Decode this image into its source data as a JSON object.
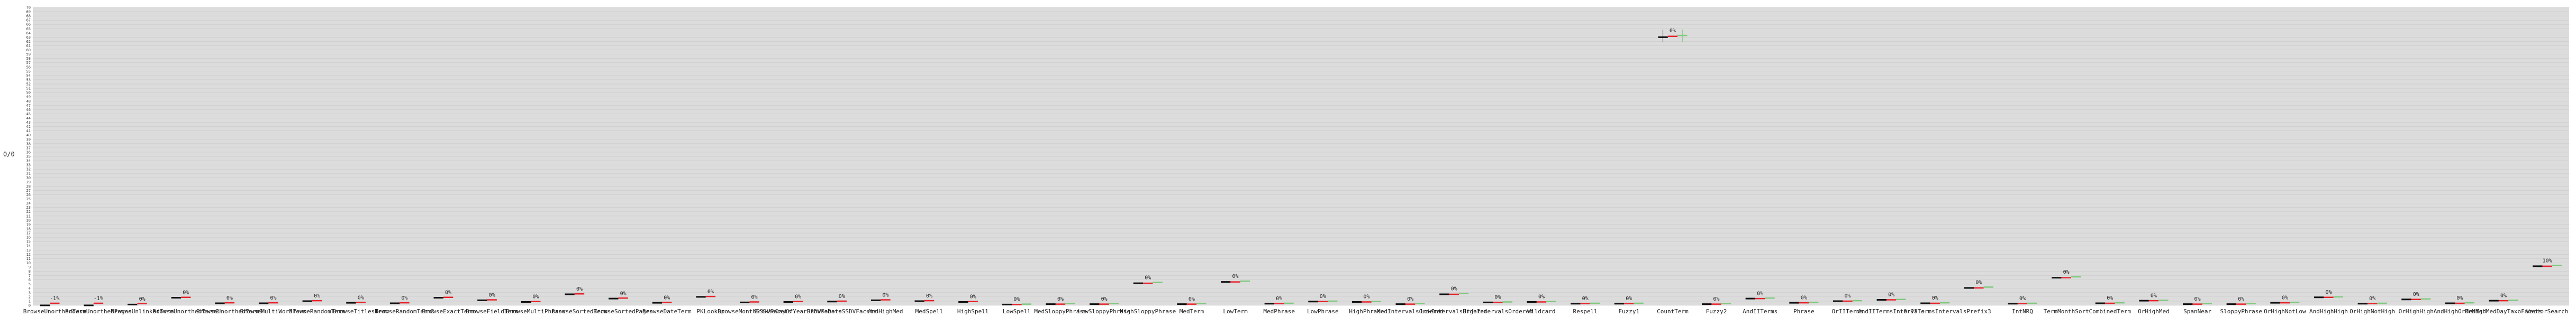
{
  "chart_data": {
    "type": "bar",
    "title": "",
    "xlabel": "",
    "ylabel": "0/0",
    "grid": true,
    "ylim": [
      0,
      70
    ],
    "colors": {
      "plot_bg": "#dcdcdc",
      "grid": "#c8c8c8",
      "baseline_bar": "#111111",
      "red_bar": "#e8222a",
      "green_bar": "#7ec97e"
    },
    "marker_series": [
      {
        "name": "",
        "color": "#111111"
      },
      {
        "name": "",
        "color": "#e8222a"
      },
      {
        "name": "",
        "color": "#7ec97e"
      }
    ],
    "categories": [
      {
        "label": "BrowseUnorthedTerm",
        "pct_label": "-1%",
        "values": [
          0.0,
          0.5,
          0.0
        ]
      },
      {
        "label": "BrowseUnorthedPages",
        "pct_label": "-1%",
        "values": [
          0.0,
          0.5,
          0.0
        ]
      },
      {
        "label": "BrowseUnlinkedTerm",
        "pct_label": "0%",
        "values": [
          0.2,
          0.4,
          0.0
        ]
      },
      {
        "label": "BrowseUnorthedTerm2",
        "pct_label": "0%",
        "values": [
          1.8,
          1.9,
          0.0
        ]
      },
      {
        "label": "BrowseUnorthedTerm3",
        "pct_label": "0%",
        "values": [
          0.5,
          0.6,
          0.0
        ]
      },
      {
        "label": "BrowseMultiWordTerm",
        "pct_label": "0%",
        "values": [
          0.5,
          0.6,
          0.0
        ]
      },
      {
        "label": "BrowseRandomTerm",
        "pct_label": "0%",
        "values": [
          1.0,
          1.1,
          0.0
        ]
      },
      {
        "label": "BrowseTitlesTerm",
        "pct_label": "0%",
        "values": [
          0.6,
          0.7,
          0.0
        ]
      },
      {
        "label": "BrowseRandomTerm2",
        "pct_label": "0%",
        "values": [
          0.5,
          0.6,
          0.0
        ]
      },
      {
        "label": "BrowseExactTerm",
        "pct_label": "0%",
        "values": [
          1.8,
          1.9,
          0.0
        ]
      },
      {
        "label": "BrowseFieldTerm",
        "pct_label": "0%",
        "values": [
          1.2,
          1.3,
          0.0
        ]
      },
      {
        "label": "BrowseMultiPhrase",
        "pct_label": "0%",
        "values": [
          0.8,
          0.9,
          0.0
        ]
      },
      {
        "label": "BrowseSortedTerm",
        "pct_label": "0%",
        "values": [
          2.6,
          2.7,
          0.0
        ]
      },
      {
        "label": "BrowseSortedPages",
        "pct_label": "0%",
        "values": [
          1.6,
          1.7,
          0.0
        ]
      },
      {
        "label": "BrowseDateTerm",
        "pct_label": "0%",
        "values": [
          0.6,
          0.7,
          0.0
        ]
      },
      {
        "label": "PKLookup",
        "pct_label": "0%",
        "values": [
          2.0,
          2.1,
          0.0
        ]
      },
      {
        "label": "BrowseMonthSSDVFacets",
        "pct_label": "0%",
        "values": [
          0.7,
          0.8,
          0.0
        ]
      },
      {
        "label": "BrowseDayOfYearSSDVFacets",
        "pct_label": "0%",
        "values": [
          0.8,
          0.9,
          0.0
        ]
      },
      {
        "label": "BrowseDateSSDVFacets",
        "pct_label": "0%",
        "values": [
          0.9,
          1.0,
          0.0
        ]
      },
      {
        "label": "AndHighMed",
        "pct_label": "0%",
        "values": [
          1.2,
          1.3,
          0.0
        ]
      },
      {
        "label": "MedSpell",
        "pct_label": "0%",
        "values": [
          1.0,
          1.1,
          0.0
        ]
      },
      {
        "label": "HighSpell",
        "pct_label": "0%",
        "values": [
          0.8,
          0.9,
          0.0
        ]
      },
      {
        "label": "LowSpell",
        "pct_label": "0%",
        "values": [
          0.2,
          0.2,
          0.3
        ]
      },
      {
        "label": "MedSloppyPhrase",
        "pct_label": "0%",
        "values": [
          0.3,
          0.3,
          0.4
        ]
      },
      {
        "label": "LowSloppyPhrase",
        "pct_label": "0%",
        "values": [
          0.3,
          0.3,
          0.4
        ]
      },
      {
        "label": "HighSloppyPhrase",
        "pct_label": "0%",
        "values": [
          5.2,
          5.2,
          5.4
        ]
      },
      {
        "label": "MedTerm",
        "pct_label": "0%",
        "values": [
          0.3,
          0.3,
          0.4
        ]
      },
      {
        "label": "LowTerm",
        "pct_label": "0%",
        "values": [
          5.5,
          5.5,
          5.7
        ]
      },
      {
        "label": "MedPhrase",
        "pct_label": "0%",
        "values": [
          0.4,
          0.4,
          0.5
        ]
      },
      {
        "label": "LowPhrase",
        "pct_label": "0%",
        "values": [
          0.9,
          0.9,
          1.0
        ]
      },
      {
        "label": "HighPhrase",
        "pct_label": "0%",
        "values": [
          0.8,
          0.8,
          0.9
        ]
      },
      {
        "label": "MedIntervalsOrdered",
        "pct_label": "0%",
        "values": [
          0.3,
          0.3,
          0.4
        ]
      },
      {
        "label": "LowIntervalsOrdered",
        "pct_label": "0%",
        "values": [
          2.6,
          2.6,
          2.8
        ]
      },
      {
        "label": "HighIntervalsOrdered",
        "pct_label": "0%",
        "values": [
          0.7,
          0.7,
          0.8
        ]
      },
      {
        "label": "Wildcard",
        "pct_label": "0%",
        "values": [
          0.8,
          0.8,
          0.9
        ]
      },
      {
        "label": "Respell",
        "pct_label": "0%",
        "values": [
          0.4,
          0.4,
          0.5
        ]
      },
      {
        "label": "Fuzzy1",
        "pct_label": "0%",
        "values": [
          0.4,
          0.4,
          0.5
        ]
      },
      {
        "label": "CountTerm",
        "pct_label": "0%",
        "values": [
          63.0,
          63.2,
          63.4
        ]
      },
      {
        "label": "Fuzzy2",
        "pct_label": "0%",
        "values": [
          0.3,
          0.3,
          0.4
        ]
      },
      {
        "label": "AndIITerms",
        "pct_label": "0%",
        "values": [
          1.6,
          1.6,
          1.7
        ]
      },
      {
        "label": "Phrase",
        "pct_label": "0%",
        "values": [
          0.6,
          0.6,
          0.7
        ]
      },
      {
        "label": "OrIITerms",
        "pct_label": "0%",
        "values": [
          1.0,
          1.0,
          1.1
        ]
      },
      {
        "label": "AndIITermsIntervals",
        "pct_label": "0%",
        "values": [
          1.3,
          1.3,
          1.4
        ]
      },
      {
        "label": "OrIITermsIntervals",
        "pct_label": "0%",
        "values": [
          0.5,
          0.5,
          0.6
        ]
      },
      {
        "label": "Prefix3",
        "pct_label": "0%",
        "values": [
          4.1,
          4.1,
          4.3
        ]
      },
      {
        "label": "IntNRQ",
        "pct_label": "0%",
        "values": [
          0.4,
          0.4,
          0.5
        ]
      },
      {
        "label": "TermMonthSort",
        "pct_label": "0%",
        "values": [
          6.5,
          6.5,
          6.7
        ]
      },
      {
        "label": "CombinedTerm",
        "pct_label": "0%",
        "values": [
          0.5,
          0.5,
          0.6
        ]
      },
      {
        "label": "OrHighMed",
        "pct_label": "0%",
        "values": [
          1.1,
          1.1,
          1.2
        ]
      },
      {
        "label": "SpanNear",
        "pct_label": "0%",
        "values": [
          0.3,
          0.3,
          0.4
        ]
      },
      {
        "label": "SloppyPhrase",
        "pct_label": "0%",
        "values": [
          0.3,
          0.3,
          0.4
        ]
      },
      {
        "label": "OrHighNotLow",
        "pct_label": "0%",
        "values": [
          0.6,
          0.6,
          0.7
        ]
      },
      {
        "label": "AndHighHigh",
        "pct_label": "0%",
        "values": [
          1.9,
          1.9,
          2.0
        ]
      },
      {
        "label": "OrHighNotHigh",
        "pct_label": "0%",
        "values": [
          0.4,
          0.4,
          0.5
        ]
      },
      {
        "label": "OrHighHigh",
        "pct_label": "0%",
        "values": [
          1.4,
          1.4,
          1.5
        ]
      },
      {
        "label": "AndHighOrMedMed",
        "pct_label": "0%",
        "values": [
          0.5,
          0.5,
          0.6
        ]
      },
      {
        "label": "OrHighMedDayTaxoFacets",
        "pct_label": "0%",
        "values": [
          1.1,
          1.1,
          1.2
        ]
      },
      {
        "label": "VectorSearch",
        "pct_label": "10%",
        "values": [
          9.2,
          9.2,
          9.4
        ]
      }
    ]
  }
}
